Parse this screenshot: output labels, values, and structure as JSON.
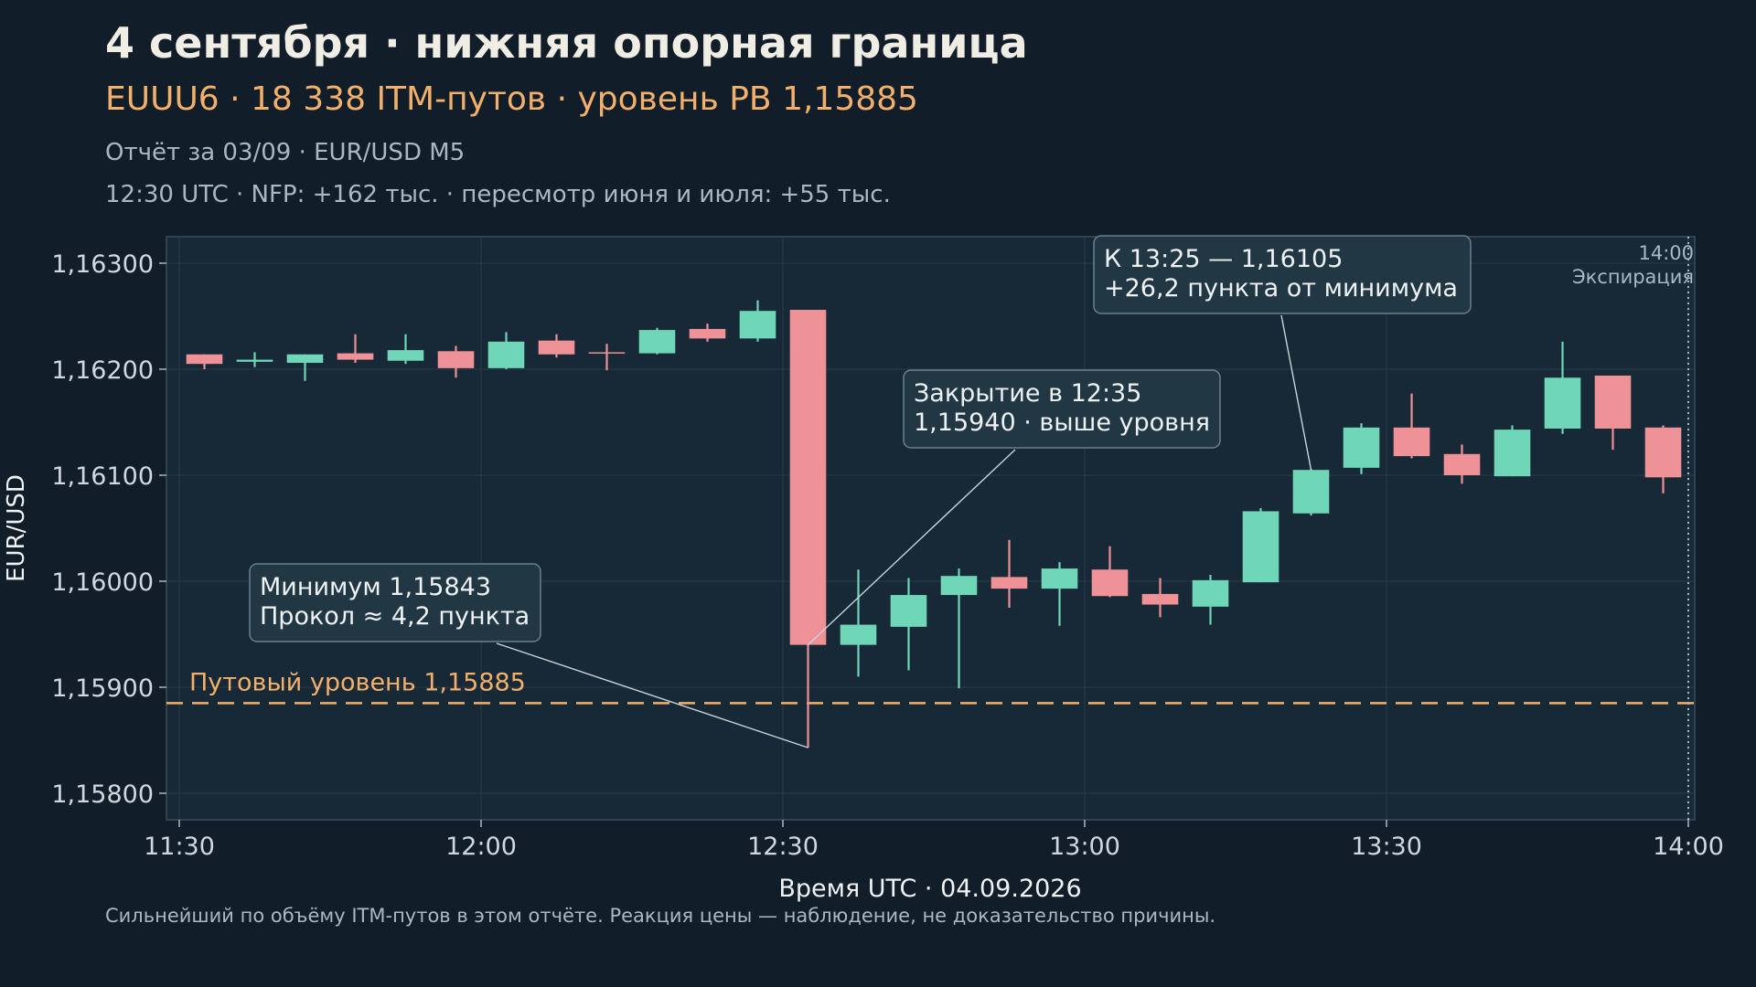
{
  "header": {
    "title": "4 сентября · нижняя опорная граница",
    "subtitle": "EUUU6 · 18 338 ITM-путов · уровень PB 1,15885",
    "line1": "Отчёт за 03/09 · EUR/USD M5",
    "line2": "12:30 UTC · NFP: +162 тыс. · пересмотр июня и июля: +55 тыс."
  },
  "footnote": "Сильнейший по объёму ITM-путов в этом отчёте. Реакция цены — наблюдение, не доказательство причины.",
  "colors": {
    "background": "#111d28",
    "plot_background": "#172836",
    "up": "#6fd6b7",
    "down": "#ee9297",
    "level": "#f2b06b",
    "grid": "#2a3c4a"
  },
  "chart_data": {
    "type": "candlestick",
    "xlabel": "Время UTC · 04.09.2026",
    "ylabel": "EUR/USD",
    "xlim": [
      "11:30",
      "14:00"
    ],
    "ylim": [
      1.15775,
      1.16325
    ],
    "x_ticks": [
      "11:30",
      "12:00",
      "12:30",
      "13:00",
      "13:30",
      "14:00"
    ],
    "y_ticks": [
      1.158,
      1.159,
      1.16,
      1.161,
      1.162,
      1.163
    ],
    "y_tick_labels": [
      "1,15800",
      "1,15900",
      "1,16000",
      "1,16100",
      "1,16200",
      "1,16300"
    ],
    "grid": true,
    "candles": [
      {
        "t": "11:30",
        "o": 1.16214,
        "h": 1.16214,
        "l": 1.162,
        "c": 1.16205
      },
      {
        "t": "11:35",
        "o": 1.16207,
        "h": 1.16216,
        "l": 1.16202,
        "c": 1.16209
      },
      {
        "t": "11:40",
        "o": 1.16206,
        "h": 1.16214,
        "l": 1.16189,
        "c": 1.16214
      },
      {
        "t": "11:45",
        "o": 1.16215,
        "h": 1.16233,
        "l": 1.16206,
        "c": 1.16209
      },
      {
        "t": "11:50",
        "o": 1.16208,
        "h": 1.16233,
        "l": 1.16205,
        "c": 1.16218
      },
      {
        "t": "11:55",
        "o": 1.16217,
        "h": 1.16222,
        "l": 1.16192,
        "c": 1.16201
      },
      {
        "t": "12:00",
        "o": 1.16201,
        "h": 1.16235,
        "l": 1.162,
        "c": 1.16226
      },
      {
        "t": "12:05",
        "o": 1.16227,
        "h": 1.16233,
        "l": 1.16211,
        "c": 1.16214
      },
      {
        "t": "12:10",
        "o": 1.16216,
        "h": 1.16224,
        "l": 1.16199,
        "c": 1.16215
      },
      {
        "t": "12:15",
        "o": 1.16215,
        "h": 1.16239,
        "l": 1.16214,
        "c": 1.16237
      },
      {
        "t": "12:20",
        "o": 1.16238,
        "h": 1.16243,
        "l": 1.16226,
        "c": 1.16229
      },
      {
        "t": "12:25",
        "o": 1.16229,
        "h": 1.16265,
        "l": 1.16226,
        "c": 1.16255
      },
      {
        "t": "12:30",
        "o": 1.16256,
        "h": 1.16256,
        "l": 1.15843,
        "c": 1.1594
      },
      {
        "t": "12:35",
        "o": 1.1594,
        "h": 1.16011,
        "l": 1.1591,
        "c": 1.15959
      },
      {
        "t": "12:40",
        "o": 1.15957,
        "h": 1.16003,
        "l": 1.15916,
        "c": 1.15987
      },
      {
        "t": "12:45",
        "o": 1.15987,
        "h": 1.16012,
        "l": 1.15899,
        "c": 1.16005
      },
      {
        "t": "12:50",
        "o": 1.16004,
        "h": 1.16039,
        "l": 1.15975,
        "c": 1.15993
      },
      {
        "t": "12:55",
        "o": 1.15993,
        "h": 1.16018,
        "l": 1.15958,
        "c": 1.16012
      },
      {
        "t": "13:00",
        "o": 1.16011,
        "h": 1.16033,
        "l": 1.15985,
        "c": 1.15986
      },
      {
        "t": "13:05",
        "o": 1.15988,
        "h": 1.16003,
        "l": 1.15966,
        "c": 1.15978
      },
      {
        "t": "13:10",
        "o": 1.15976,
        "h": 1.16006,
        "l": 1.15959,
        "c": 1.16001
      },
      {
        "t": "13:15",
        "o": 1.15999,
        "h": 1.16069,
        "l": 1.15999,
        "c": 1.16066
      },
      {
        "t": "13:20",
        "o": 1.16064,
        "h": 1.16106,
        "l": 1.16062,
        "c": 1.16105
      },
      {
        "t": "13:25",
        "o": 1.16107,
        "h": 1.16149,
        "l": 1.16101,
        "c": 1.16145
      },
      {
        "t": "13:30",
        "o": 1.16145,
        "h": 1.16177,
        "l": 1.16116,
        "c": 1.16118
      },
      {
        "t": "13:35",
        "o": 1.1612,
        "h": 1.16129,
        "l": 1.16092,
        "c": 1.161
      },
      {
        "t": "13:40",
        "o": 1.16099,
        "h": 1.16147,
        "l": 1.16099,
        "c": 1.16143
      },
      {
        "t": "13:45",
        "o": 1.16144,
        "h": 1.16226,
        "l": 1.16139,
        "c": 1.16192
      },
      {
        "t": "13:50",
        "o": 1.16194,
        "h": 1.16194,
        "l": 1.16124,
        "c": 1.16144
      },
      {
        "t": "13:55",
        "o": 1.16145,
        "h": 1.16147,
        "l": 1.16083,
        "c": 1.16098
      }
    ],
    "reference_lines": [
      {
        "type": "horizontal",
        "y": 1.15885,
        "label": "Путовый уровень 1,15885",
        "style": "dashed"
      },
      {
        "type": "vertical",
        "x": "14:00",
        "label_time": "14:00",
        "label_text": "Экспирация",
        "style": "dotted"
      }
    ],
    "annotations": [
      {
        "lines": [
          "Минимум 1,15843",
          "Прокол ≈ 4,2 пункта"
        ],
        "target_t": "12:30",
        "target_y": 1.15843
      },
      {
        "lines": [
          "Закрытие в 12:35",
          "1,15940 · выше уровня"
        ],
        "target_t": "12:30",
        "target_y": 1.1594
      },
      {
        "lines": [
          "К 13:25 — 1,16105",
          "+26,2 пункта от минимума"
        ],
        "target_t": "13:20",
        "target_y": 1.16105
      }
    ]
  }
}
